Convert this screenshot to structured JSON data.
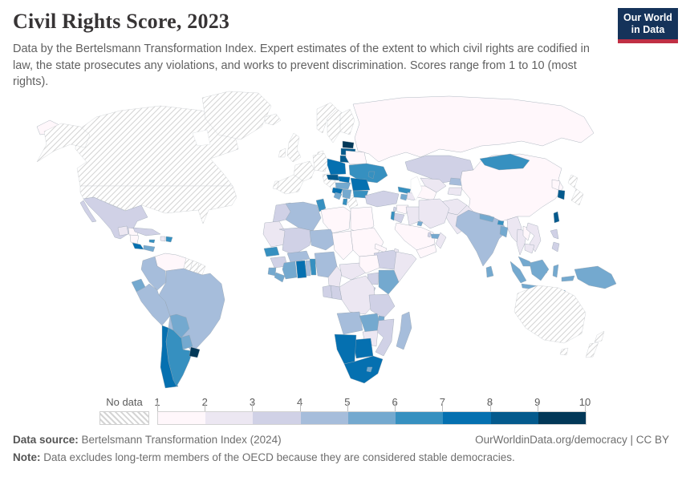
{
  "header": {
    "title": "Civil Rights Score, 2023",
    "subtitle": "Data by the Bertelsmann Transformation Index. Expert estimates of the extent to which civil rights are codified in law, the state prosecutes any violations, and works to prevent discrimination. Scores range from 1 to 10 (most rights).",
    "logo": {
      "line1": "Our World",
      "line2": "in Data",
      "bg_color": "#15335a",
      "stripe_color": "#c02f44"
    }
  },
  "legend": {
    "no_data_label": "No data",
    "ticks": [
      "1",
      "2",
      "3",
      "4",
      "5",
      "6",
      "7",
      "8",
      "9",
      "10"
    ],
    "colors": [
      "#fff7fb",
      "#ece7f2",
      "#d0d1e6",
      "#a6bddb",
      "#74a9cf",
      "#3690c0",
      "#0570b0",
      "#045a8d",
      "#023858"
    ]
  },
  "footer": {
    "source_label": "Data source:",
    "source_text": " Bertelsmann Transformation Index (2024)",
    "right_text": "OurWorldinData.org/democracy | CC BY",
    "note_label": "Note:",
    "note_text": " Data excludes long-term members of the OECD because they are considered stable democracies."
  },
  "chart_data": {
    "type": "choropleth_map",
    "title": "Civil Rights Score, 2023",
    "year": "2023",
    "unit": "score",
    "scale": {
      "min": 1,
      "max": 10,
      "bin_edges": [
        1,
        2,
        3,
        4,
        5,
        6,
        7,
        8,
        9,
        10
      ],
      "palette_colors": [
        "#fff7fb",
        "#ece7f2",
        "#d0d1e6",
        "#a6bddb",
        "#74a9cf",
        "#3690c0",
        "#0570b0",
        "#045a8d",
        "#023858"
      ]
    },
    "no_data": [
      "United States",
      "Canada",
      "Greenland",
      "Iceland",
      "United Kingdom",
      "Ireland",
      "Norway",
      "Sweden",
      "Finland",
      "Denmark",
      "Germany",
      "France",
      "Netherlands",
      "Belgium",
      "Switzerland",
      "Austria",
      "Spain",
      "Portugal",
      "Italy",
      "Greece",
      "Japan",
      "Australia",
      "New Zealand",
      "Guyana",
      "Suriname",
      "French Guiana"
    ],
    "countries": [
      {
        "name": "Mexico",
        "score": 3.5
      },
      {
        "name": "Guatemala",
        "score": 2.5
      },
      {
        "name": "Honduras",
        "score": 1.5
      },
      {
        "name": "Nicaragua",
        "score": 1.5
      },
      {
        "name": "Costa Rica",
        "score": 7.5
      },
      {
        "name": "Panama",
        "score": 5.5
      },
      {
        "name": "Cuba",
        "score": 3.5
      },
      {
        "name": "Jamaica",
        "score": 6.5
      },
      {
        "name": "Haiti",
        "score": 2.5
      },
      {
        "name": "Dominican Republic",
        "score": 6.5
      },
      {
        "name": "Venezuela",
        "score": 1.5
      },
      {
        "name": "Colombia",
        "score": 4.5
      },
      {
        "name": "Ecuador",
        "score": 5.5
      },
      {
        "name": "Peru",
        "score": 4.5
      },
      {
        "name": "Brazil",
        "score": 4.5
      },
      {
        "name": "Bolivia",
        "score": 5.5
      },
      {
        "name": "Paraguay",
        "score": 5.5
      },
      {
        "name": "Chile",
        "score": 7.5
      },
      {
        "name": "Argentina",
        "score": 6.5
      },
      {
        "name": "Uruguay",
        "score": 9.5
      },
      {
        "name": "Estonia",
        "score": 9.5
      },
      {
        "name": "Latvia",
        "score": 8.5
      },
      {
        "name": "Lithuania",
        "score": 8.5
      },
      {
        "name": "Poland",
        "score": 7.5
      },
      {
        "name": "Czechia",
        "score": 8.5
      },
      {
        "name": "Slovakia",
        "score": 7.5
      },
      {
        "name": "Hungary",
        "score": 5.5
      },
      {
        "name": "Belarus",
        "score": 1.5
      },
      {
        "name": "Ukraine",
        "score": 6.5
      },
      {
        "name": "Moldova",
        "score": 6.5
      },
      {
        "name": "Romania",
        "score": 7.5
      },
      {
        "name": "Croatia",
        "score": 7.5
      },
      {
        "name": "Serbia",
        "score": 5.5
      },
      {
        "name": "Bosnia and Herzegovina",
        "score": 5.5
      },
      {
        "name": "Albania",
        "score": 6.5
      },
      {
        "name": "Bulgaria",
        "score": 6.5
      },
      {
        "name": "Russia",
        "score": 1.5
      },
      {
        "name": "Turkey",
        "score": 3.5
      },
      {
        "name": "Georgia",
        "score": 6.5
      },
      {
        "name": "Armenia",
        "score": 5.5
      },
      {
        "name": "Azerbaijan",
        "score": 2.5
      },
      {
        "name": "Kazakhstan",
        "score": 3.5
      },
      {
        "name": "Uzbekistan",
        "score": 2.5
      },
      {
        "name": "Turkmenistan",
        "score": 1.5
      },
      {
        "name": "Kyrgyzstan",
        "score": 4.5
      },
      {
        "name": "Tajikistan",
        "score": 2.5
      },
      {
        "name": "Morocco",
        "score": 3.5
      },
      {
        "name": "Algeria",
        "score": 4.5
      },
      {
        "name": "Tunisia",
        "score": 6.5
      },
      {
        "name": "Libya",
        "score": 1.5
      },
      {
        "name": "Egypt",
        "score": 1.5
      },
      {
        "name": "Syria",
        "score": 1.5
      },
      {
        "name": "Lebanon",
        "score": 3.5
      },
      {
        "name": "Israel",
        "score": 6.5
      },
      {
        "name": "Jordan",
        "score": 3.5
      },
      {
        "name": "Iraq",
        "score": 2.5
      },
      {
        "name": "Iran",
        "score": 2.5
      },
      {
        "name": "Saudi Arabia",
        "score": 1.5
      },
      {
        "name": "Yemen",
        "score": 1.5
      },
      {
        "name": "Oman",
        "score": 2.5
      },
      {
        "name": "United Arab Emirates",
        "score": 5.5
      },
      {
        "name": "Qatar",
        "score": 3.5
      },
      {
        "name": "Kuwait",
        "score": 5.5
      },
      {
        "name": "Mauritania",
        "score": 2.5
      },
      {
        "name": "Mali",
        "score": 3.5
      },
      {
        "name": "Niger",
        "score": 4.5
      },
      {
        "name": "Chad",
        "score": 1.5
      },
      {
        "name": "Sudan",
        "score": 1.5
      },
      {
        "name": "Eritrea",
        "score": 1.5
      },
      {
        "name": "Djibouti",
        "score": 2.5
      },
      {
        "name": "Ethiopia",
        "score": 3.5
      },
      {
        "name": "Somalia",
        "score": 2.5
      },
      {
        "name": "Senegal",
        "score": 6.5
      },
      {
        "name": "Guinea",
        "score": 3.5
      },
      {
        "name": "Sierra Leone",
        "score": 5.5
      },
      {
        "name": "Liberia",
        "score": 5.5
      },
      {
        "name": "Ivory Coast",
        "score": 5.5
      },
      {
        "name": "Ghana",
        "score": 7.5
      },
      {
        "name": "Togo",
        "score": 4.5
      },
      {
        "name": "Benin",
        "score": 6.5
      },
      {
        "name": "Burkina Faso",
        "score": 4.5
      },
      {
        "name": "Nigeria",
        "score": 4.5
      },
      {
        "name": "Cameroon",
        "score": 2.5
      },
      {
        "name": "Central African Republic",
        "score": 2.5
      },
      {
        "name": "South Sudan",
        "score": 1.5
      },
      {
        "name": "Uganda",
        "score": 3.5
      },
      {
        "name": "Kenya",
        "score": 5.5
      },
      {
        "name": "Rwanda",
        "score": 3.5
      },
      {
        "name": "Burundi",
        "score": 2.5
      },
      {
        "name": "Democratic Republic of Congo",
        "score": 2.5
      },
      {
        "name": "Congo",
        "score": 3.5
      },
      {
        "name": "Gabon",
        "score": 3.5
      },
      {
        "name": "Tanzania",
        "score": 3.5
      },
      {
        "name": "Angola",
        "score": 4.5
      },
      {
        "name": "Zambia",
        "score": 5.5
      },
      {
        "name": "Malawi",
        "score": 5.5
      },
      {
        "name": "Mozambique",
        "score": 3.5
      },
      {
        "name": "Zimbabwe",
        "score": 2.5
      },
      {
        "name": "Botswana",
        "score": 7.5
      },
      {
        "name": "Namibia",
        "score": 7.5
      },
      {
        "name": "South Africa",
        "score": 7.5
      },
      {
        "name": "Lesotho",
        "score": 5.5
      },
      {
        "name": "Madagascar",
        "score": 4.5
      },
      {
        "name": "Afghanistan",
        "score": 2.5
      },
      {
        "name": "Pakistan",
        "score": 2.5
      },
      {
        "name": "India",
        "score": 4.5
      },
      {
        "name": "Nepal",
        "score": 5.5
      },
      {
        "name": "Bhutan",
        "score": 6.5
      },
      {
        "name": "Bangladesh",
        "score": 5.5
      },
      {
        "name": "Sri Lanka",
        "score": 5.5
      },
      {
        "name": "Myanmar",
        "score": 2.5
      },
      {
        "name": "Thailand",
        "score": 2.5
      },
      {
        "name": "Laos",
        "score": 1.5
      },
      {
        "name": "Vietnam",
        "score": 2.5
      },
      {
        "name": "Cambodia",
        "score": 2.5
      },
      {
        "name": "China",
        "score": 1.5
      },
      {
        "name": "Mongolia",
        "score": 6.5
      },
      {
        "name": "North Korea",
        "score": 1.5
      },
      {
        "name": "South Korea",
        "score": 8.5
      },
      {
        "name": "Taiwan",
        "score": 8.5
      },
      {
        "name": "Philippines",
        "score": 3.5
      },
      {
        "name": "Malaysia",
        "score": 5.5
      },
      {
        "name": "Indonesia",
        "score": 5.5
      },
      {
        "name": "Timor-Leste",
        "score": 6.5
      },
      {
        "name": "Papua New Guinea",
        "score": 5.5
      }
    ]
  }
}
